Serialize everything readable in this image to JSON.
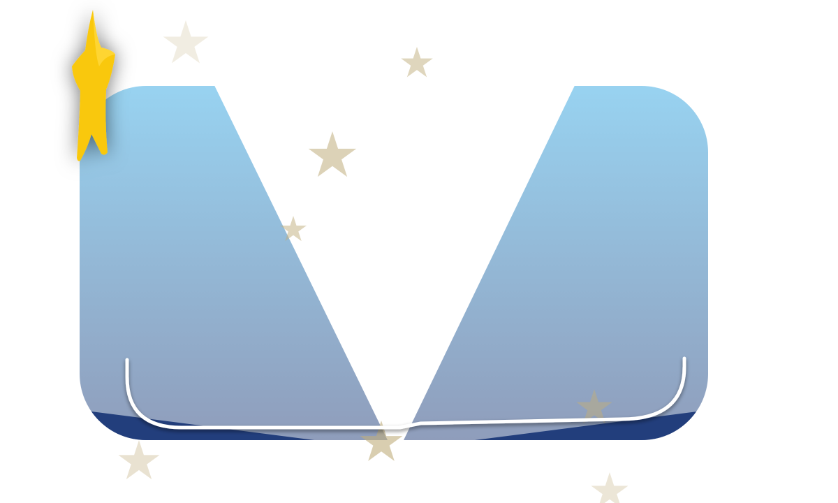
{
  "colors": {
    "background": "#ffffff",
    "panel_top": "#98d4f2",
    "panel_bottom": "#8f9dbb",
    "band": "#223e7c",
    "frame_line": "#ffffff",
    "accent_star": "#f9c80e",
    "accent_star_highlight": "#ffd83a",
    "faded_star": "#bfad7c"
  },
  "icons": {
    "accent": "star-icon",
    "decoration": "star-icon"
  }
}
